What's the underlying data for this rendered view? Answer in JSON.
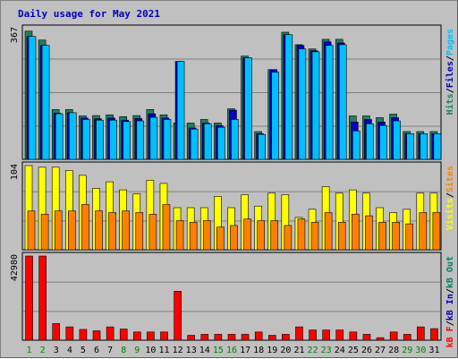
{
  "chart_data": {
    "type": "bar",
    "title": "Daily usage for May 2021",
    "colors": {
      "background": "#c0c0c0",
      "panel": "#c0c0c0",
      "grid": "#808080",
      "hits": "#1f7f5f",
      "files": "#0000c0",
      "pages": "#00bfff",
      "visits": "#ffff00",
      "sites": "#ff8000",
      "kbin": "#0000c0",
      "kbout": "#008060",
      "kbf": "#ff0000",
      "title": "#0000c0",
      "weekend": "#008000",
      "weekday": "#000000"
    },
    "categories": [
      "1",
      "2",
      "3",
      "4",
      "5",
      "6",
      "7",
      "8",
      "9",
      "10",
      "11",
      "12",
      "13",
      "14",
      "15",
      "16",
      "17",
      "18",
      "19",
      "20",
      "21",
      "22",
      "23",
      "24",
      "25",
      "26",
      "27",
      "28",
      "29",
      "30",
      "31"
    ],
    "weekend_days": [
      "1",
      "2",
      "8",
      "9",
      "15",
      "16",
      "22",
      "23",
      "29",
      "30"
    ],
    "panels": [
      {
        "id": "hits-panel",
        "max_label": "367",
        "ymax": 367,
        "side_labels": [
          {
            "text": "Hits",
            "color": "#1f7f5f"
          },
          {
            "text": "/",
            "color": "#000000"
          },
          {
            "text": "Files",
            "color": "#0000c0"
          },
          {
            "text": "/",
            "color": "#000000"
          },
          {
            "text": "Pages",
            "color": "#00bfff"
          }
        ],
        "series": [
          {
            "name": "Hits",
            "color": "#1f7f5f",
            "values": [
              360,
              335,
              140,
              140,
              122,
              123,
              125,
              120,
              123,
              140,
              125,
              102,
              102,
              112,
              102,
              142,
              290,
              78,
              252,
              357,
              322,
              310,
              337,
              337,
              122,
              122,
              117,
              127,
              78,
              78,
              78
            ]
          },
          {
            "name": "Files",
            "color": "#0000c0",
            "values": [
              345,
              320,
              130,
              131,
              116,
              114,
              116,
              110,
              115,
              128,
              116,
              275,
              88,
              102,
              95,
              138,
              285,
              72,
              252,
              350,
              320,
              305,
              330,
              327,
              105,
              112,
              105,
              117,
              72,
              72,
              72
            ]
          },
          {
            "name": "Pages",
            "color": "#00bfff",
            "values": [
              345,
              320,
              128,
              131,
              112,
              110,
              110,
              106,
              108,
              118,
              112,
              275,
              85,
              100,
              90,
              112,
              285,
              70,
              245,
              350,
              310,
              302,
              320,
              322,
              80,
              100,
              95,
              108,
              72,
              72,
              72
            ]
          }
        ]
      },
      {
        "id": "visits-panel",
        "max_label": "104",
        "ymax": 104,
        "side_labels": [
          {
            "text": "Visits",
            "color": "#ffff00"
          },
          {
            "text": "/",
            "color": "#000000"
          },
          {
            "text": "Sites",
            "color": "#ff8000"
          }
        ],
        "series": [
          {
            "name": "Visits",
            "color": "#ffff00",
            "values": [
              104,
              102,
              102,
              98,
              92,
              76,
              84,
              74,
              69,
              86,
              82,
              52,
              52,
              52,
              66,
              52,
              68,
              54,
              70,
              68,
              40,
              50,
              78,
              70,
              74,
              70,
              52,
              46,
              50,
              70,
              70
            ]
          },
          {
            "name": "Sites",
            "color": "#ff8000",
            "values": [
              48,
              44,
              48,
              48,
              56,
              48,
              46,
              48,
              46,
              44,
              56,
              36,
              34,
              36,
              28,
              30,
              38,
              36,
              36,
              30,
              38,
              34,
              46,
              34,
              44,
              42,
              34,
              34,
              32,
              46,
              46
            ]
          }
        ]
      },
      {
        "id": "kb-panel",
        "max_label": "42980",
        "ymax": 42980,
        "side_labels": [
          {
            "text": "kB F",
            "color": "#ff0000"
          },
          {
            "text": "/",
            "color": "#000000"
          },
          {
            "text": "kB In",
            "color": "#0000c0"
          },
          {
            "text": "/",
            "color": "#000000"
          },
          {
            "text": "kB Out",
            "color": "#008060"
          }
        ],
        "series": [
          {
            "name": "kB F",
            "color": "#ff0000",
            "values": [
              42980,
              42980,
              8500,
              6800,
              5500,
              4800,
              6800,
              5700,
              4200,
              4200,
              4200,
              25000,
              2500,
              3000,
              3000,
              3000,
              3000,
              4200,
              2500,
              3000,
              6800,
              5200,
              5200,
              5200,
              4200,
              3000,
              1300,
              4200,
              3000,
              6800,
              5900
            ]
          }
        ]
      }
    ]
  }
}
